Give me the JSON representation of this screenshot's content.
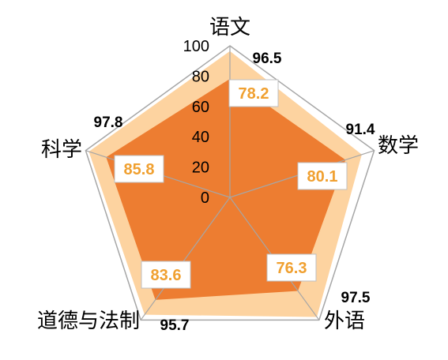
{
  "chart_data": {
    "type": "radar",
    "categories": [
      "语文",
      "数学",
      "外语",
      "道德与法制",
      "科学"
    ],
    "r_ticks": [
      "0",
      "20",
      "40",
      "60",
      "80",
      "100"
    ],
    "r_range": [
      0,
      100
    ],
    "series": [
      {
        "values": [
          96.5,
          91.4,
          97.5,
          95.7,
          97.8
        ],
        "color": "#FDD3A0"
      },
      {
        "values": [
          78.2,
          80.1,
          76.3,
          83.6,
          85.8
        ],
        "color": "#ED7D31"
      }
    ],
    "outer_labels": [
      "96.5",
      "91.4",
      "97.5",
      "95.7",
      "97.8"
    ],
    "inner_labels": [
      "78.2",
      "80.1",
      "76.3",
      "83.6",
      "85.8"
    ],
    "grid_color": "#A6A6A6",
    "inner_label_color": "#F0A030"
  }
}
